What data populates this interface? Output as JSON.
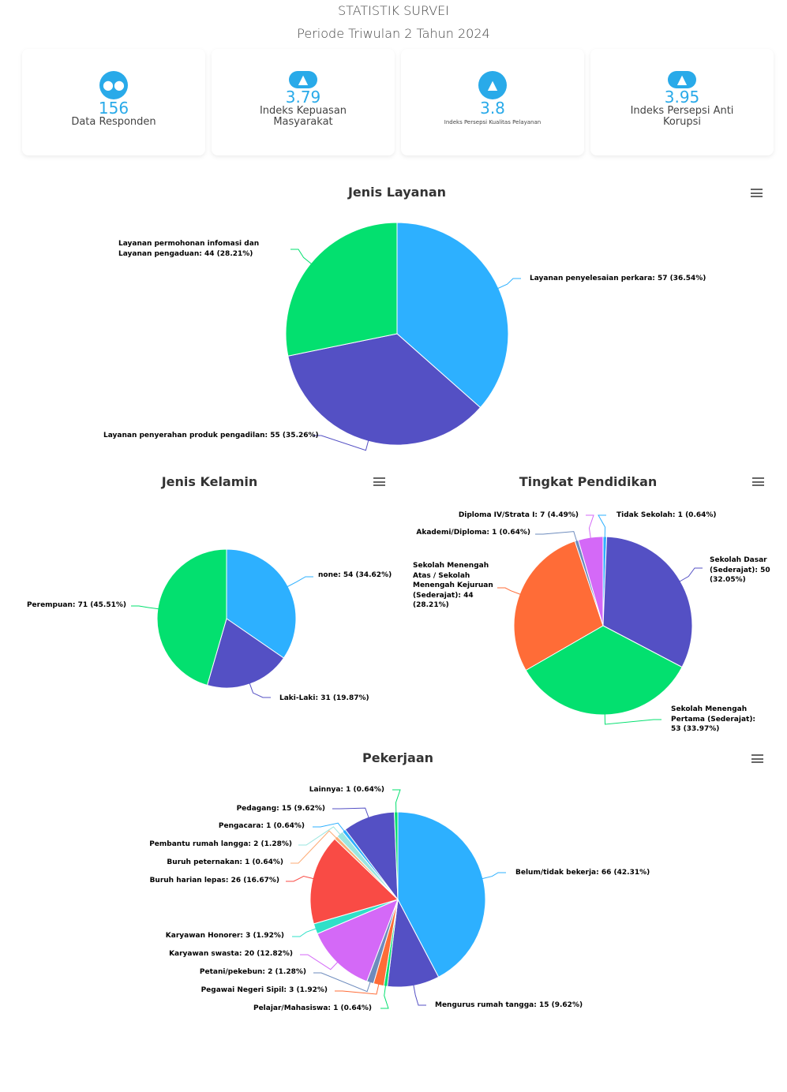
{
  "header": {
    "title": "STATISTIK SURVEI",
    "period": "Periode Triwulan 2 Tahun 2024"
  },
  "cards": [
    {
      "icon": "users-icon",
      "value": "156",
      "label": "Data Responden"
    },
    {
      "icon": "thumbs-up-icon",
      "value": "3.79",
      "label": "Indeks Kepuasan Masyarakat"
    },
    {
      "icon": "thumbs-up-icon",
      "value": "3.8",
      "label": "Indeks Persepsi Kualitas Pelayanan"
    },
    {
      "icon": "thumbs-up-icon",
      "value": "3.95",
      "label": "Indeks Persepsi Anti Korupsi"
    }
  ],
  "chart_data": [
    {
      "type": "pie",
      "title": "Jenis Layanan",
      "slices": [
        {
          "name": "Layanan penyelesaian perkara",
          "value": 57,
          "pct": "36.54%",
          "color": "#2db0ff",
          "label": "Layanan penyelesaian perkara: 57 (36.54%)"
        },
        {
          "name": "Layanan penyerahan produk pengadilan",
          "value": 55,
          "pct": "35.26%",
          "color": "#5450c4",
          "label": "Layanan penyerahan produk pengadilan: 55 (35.26%)"
        },
        {
          "name": "Layanan permohonan infomasi dan Layanan pengaduan",
          "value": 44,
          "pct": "28.21%",
          "color": "#03e06f",
          "label": "Layanan permohonan infomasi dan Layanan pengaduan: 44 (28.21%)"
        }
      ]
    },
    {
      "type": "pie",
      "title": "Jenis Kelamin",
      "slices": [
        {
          "name": "none",
          "value": 54,
          "pct": "34.62%",
          "color": "#2db0ff",
          "label": "none: 54 (34.62%)"
        },
        {
          "name": "Laki-Laki",
          "value": 31,
          "pct": "19.87%",
          "color": "#5450c4",
          "label": "Laki-Laki: 31 (19.87%)"
        },
        {
          "name": "Perempuan",
          "value": 71,
          "pct": "45.51%",
          "color": "#03e06f",
          "label": "Perempuan: 71 (45.51%)"
        }
      ]
    },
    {
      "type": "pie",
      "title": "Tingkat Pendidikan",
      "slices": [
        {
          "name": "Tidak Sekolah",
          "value": 1,
          "pct": "0.64%",
          "color": "#2db0ff",
          "label": "Tidak Sekolah: 1 (0.64%)"
        },
        {
          "name": "Sekolah Dasar (Sederajat)",
          "value": 50,
          "pct": "32.05%",
          "color": "#5450c4",
          "label": "Sekolah Dasar (Sederajat): 50 (32.05%)"
        },
        {
          "name": "Sekolah Menengah Pertama (Sederajat)",
          "value": 53,
          "pct": "33.97%",
          "color": "#03e06f",
          "label": "Sekolah Menengah Pertama (Sederajat): 53 (33.97%)"
        },
        {
          "name": "Sekolah Menengah Atas / Sekolah Menengah Kejuruan (Sederajat)",
          "value": 44,
          "pct": "28.21%",
          "color": "#ff6c37",
          "label": "Sekolah Menengah Atas / Sekolah Menengah Kejuruan (Sederajat): 44 (28.21%)"
        },
        {
          "name": "Akademi/Diploma",
          "value": 1,
          "pct": "0.64%",
          "color": "#6d8bbd",
          "label": "Akademi/Diploma: 1 (0.64%)"
        },
        {
          "name": "Diploma IV/Strata I",
          "value": 7,
          "pct": "4.49%",
          "color": "#d469f7",
          "label": "Diploma IV/Strata I: 7 (4.49%)"
        }
      ]
    },
    {
      "type": "pie",
      "title": "Pekerjaan",
      "slices": [
        {
          "name": "Belum/tidak bekerja",
          "value": 66,
          "pct": "42.31%",
          "color": "#2db0ff",
          "label": "Belum/tidak bekerja: 66 (42.31%)"
        },
        {
          "name": "Mengurus rumah tangga",
          "value": 15,
          "pct": "9.62%",
          "color": "#5450c4",
          "label": "Mengurus rumah tangga: 15 (9.62%)"
        },
        {
          "name": "Pelajar/Mahasiswa",
          "value": 1,
          "pct": "0.64%",
          "color": "#03e06f",
          "label": "Pelajar/Mahasiswa: 1 (0.64%)"
        },
        {
          "name": "Pegawai Negeri Sipil",
          "value": 3,
          "pct": "1.92%",
          "color": "#ff6c37",
          "label": "Pegawai Negeri Sipil: 3 (1.92%)"
        },
        {
          "name": "Petani/pekebun",
          "value": 2,
          "pct": "1.28%",
          "color": "#6d8bbd",
          "label": "Petani/pekebun: 2 (1.28%)"
        },
        {
          "name": "Karyawan swasta",
          "value": 20,
          "pct": "12.82%",
          "color": "#d469f7",
          "label": "Karyawan swasta: 20 (12.82%)"
        },
        {
          "name": "Karyawan Honorer",
          "value": 3,
          "pct": "1.92%",
          "color": "#2fe0c8",
          "label": "Karyawan Honorer: 3 (1.92%)"
        },
        {
          "name": "Buruh harian lepas",
          "value": 26,
          "pct": "16.67%",
          "color": "#f94b45",
          "label": "Buruh harian lepas: 26 (16.67%)"
        },
        {
          "name": "Buruh peternakan",
          "value": 1,
          "pct": "0.64%",
          "color": "#fdab74",
          "label": "Buruh peternakan: 1 (0.64%)"
        },
        {
          "name": "Pembantu rumah langga",
          "value": 2,
          "pct": "1.28%",
          "color": "#9be6e0",
          "label": "Pembantu rumah langga: 2 (1.28%)"
        },
        {
          "name": "Pengacara",
          "value": 1,
          "pct": "0.64%",
          "color": "#2db0ff",
          "label": "Pengacara: 1 (0.64%)"
        },
        {
          "name": "Pedagang",
          "value": 15,
          "pct": "9.62%",
          "color": "#5450c4",
          "label": "Pedagang: 15 (9.62%)"
        },
        {
          "name": "Lainnya",
          "value": 1,
          "pct": "0.64%",
          "color": "#03e06f",
          "label": "Lainnya: 1 (0.64%)"
        }
      ]
    }
  ]
}
